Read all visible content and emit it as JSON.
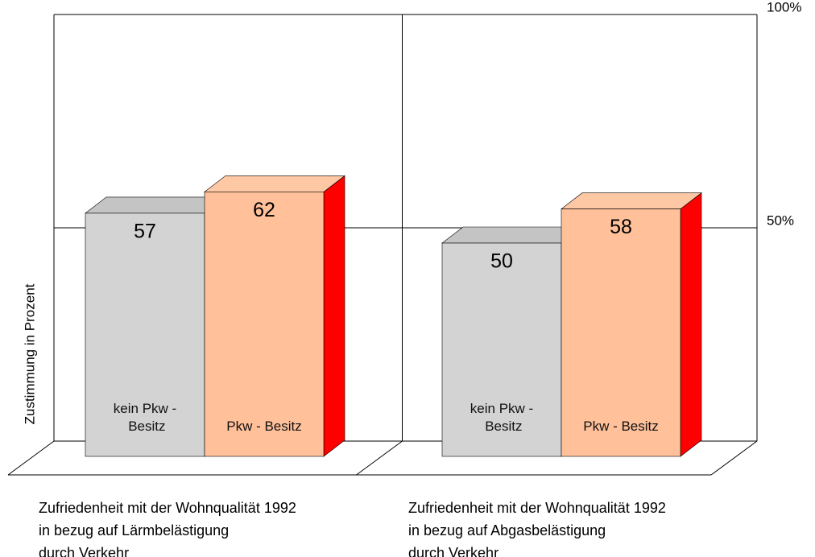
{
  "chart_data": {
    "type": "bar3d",
    "y_label": "Zustimmung in Prozent",
    "categories": [
      [
        "Zufriedenheit mit der Wohnqualität 1992",
        "in bezug auf  Lärmbelästigung",
        "durch Verkehr"
      ],
      [
        "Zufriedenheit mit der Wohnqualität 1992",
        "in bezug auf  Abgasbelästigung",
        "durch Verkehr"
      ]
    ],
    "series": [
      {
        "name": "kein Pkw - Besitz",
        "color": "#d3d3d3",
        "top_color": "#c4c4c4",
        "side_color": "#a0a0a0",
        "values": [
          57,
          50
        ]
      },
      {
        "name": "Pkw - Besitz",
        "color": "#ffc09a",
        "top_color": "#ffc8a4",
        "side_color": "#ff0000",
        "values": [
          62,
          58
        ]
      }
    ],
    "ylim": [
      0,
      100
    ],
    "yticks": [
      {
        "value": 50,
        "label": "50%"
      },
      {
        "value": 100,
        "label": "100%"
      }
    ],
    "grid": true
  }
}
